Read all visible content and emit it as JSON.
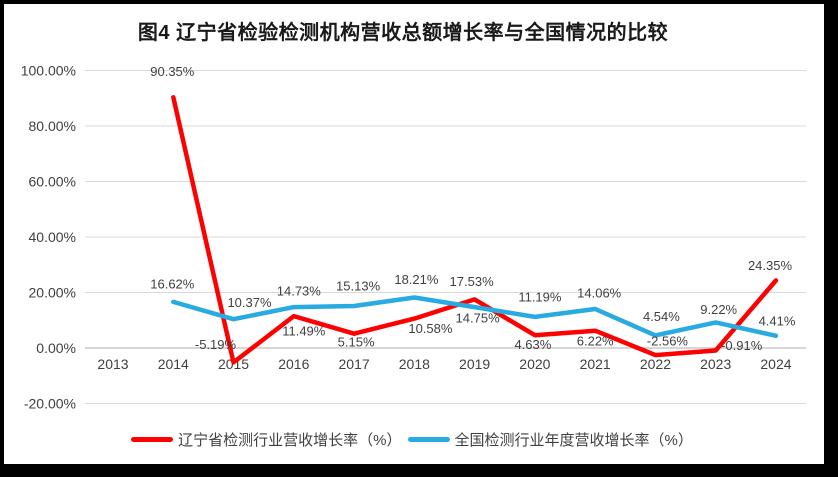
{
  "frame": {
    "border_color": "#000000",
    "background": "#FFFFFF"
  },
  "chart_data": {
    "type": "line",
    "title": "图4 辽宁省检验检测机构营收总额增长率与全国情况的比较",
    "categories": [
      "2013",
      "2014",
      "2015",
      "2016",
      "2017",
      "2018",
      "2019",
      "2020",
      "2021",
      "2022",
      "2023",
      "2024"
    ],
    "series": [
      {
        "name": "辽宁省检测行业营收增长率（%）",
        "color": "#FF0000",
        "values": [
          null,
          90.35,
          -5.19,
          11.49,
          5.15,
          10.58,
          17.53,
          4.63,
          6.22,
          -2.56,
          -0.91,
          24.35
        ],
        "data_labels": [
          "",
          "90.35%",
          "-5.19%",
          "11.49%",
          "5.15%",
          "10.58%",
          "17.53%",
          "4.63%",
          "6.22%",
          "-2.56%",
          "-0.91%",
          "24.35%"
        ],
        "label_offsets": [
          [
            0,
            0
          ],
          [
            -1,
            -26
          ],
          [
            -18,
            -18
          ],
          [
            10,
            15
          ],
          [
            2,
            8
          ],
          [
            16,
            10
          ],
          [
            -3,
            -18
          ],
          [
            -2,
            9
          ],
          [
            0,
            10
          ],
          [
            12,
            -14
          ],
          [
            26,
            -5
          ],
          [
            -6,
            -15
          ]
        ]
      },
      {
        "name": "全国检测行业年度营收增长率（%）",
        "color": "#29ABE2",
        "values": [
          null,
          16.62,
          10.37,
          14.73,
          15.13,
          18.21,
          14.75,
          11.19,
          14.06,
          4.54,
          9.22,
          4.41
        ],
        "data_labels": [
          "",
          "16.62%",
          "10.37%",
          "14.73%",
          "15.13%",
          "18.21%",
          "14.75%",
          "11.19%",
          "14.06%",
          "4.54%",
          "9.22%",
          "4.41%"
        ],
        "label_offsets": [
          [
            0,
            0
          ],
          [
            -1,
            -18
          ],
          [
            16,
            -17
          ],
          [
            5,
            -16
          ],
          [
            4,
            -20
          ],
          [
            2,
            -18
          ],
          [
            3,
            11
          ],
          [
            5,
            -20
          ],
          [
            4,
            -16
          ],
          [
            6,
            -19
          ],
          [
            3,
            -13
          ],
          [
            1,
            -15
          ]
        ]
      }
    ],
    "y_axis": {
      "min": -20,
      "max": 100,
      "step": 20,
      "tick_labels": [
        "-20.00%",
        "0.00%",
        "20.00%",
        "40.00%",
        "60.00%",
        "80.00%",
        "100.00%"
      ]
    },
    "grid": true,
    "legend_position": "bottom",
    "colors": {
      "gridline": "#D9D9D9",
      "zero_line": "#BFBFBF",
      "axis_text": "#404040",
      "label_text": "#404040"
    }
  }
}
